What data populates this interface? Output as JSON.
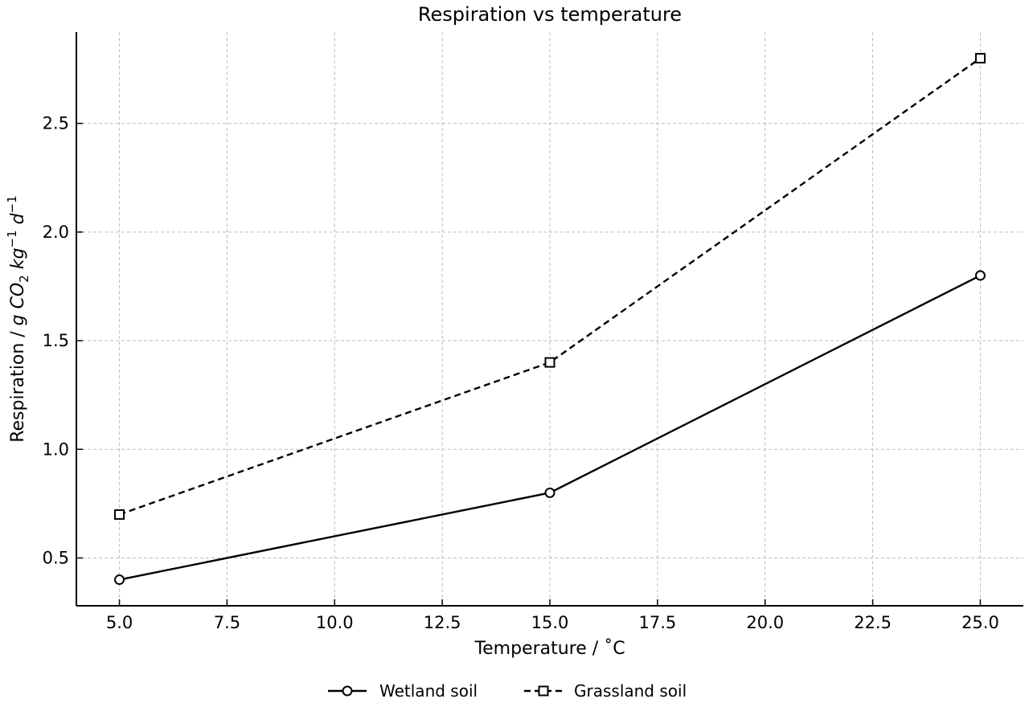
{
  "chart_data": {
    "type": "line",
    "title": "Respiration vs temperature",
    "xlabel": "Temperature / ˚C",
    "ylabel": "Respiration / g CO2 kg-1 d-1",
    "ylabel_parts": {
      "base": "Respiration / ",
      "g": "g ",
      "co": "CO",
      "co_sub": "2",
      "kg": " kg",
      "kg_sup": "−1",
      "d": " d",
      "d_sup": "−1"
    },
    "xlim": [
      4.0,
      26.0
    ],
    "ylim": [
      0.28,
      2.92
    ],
    "xticks": [
      5.0,
      7.5,
      10.0,
      12.5,
      15.0,
      17.5,
      20.0,
      22.5,
      25.0
    ],
    "xtick_labels": [
      "5.0",
      "7.5",
      "10.0",
      "12.5",
      "15.0",
      "17.5",
      "20.0",
      "22.5",
      "25.0"
    ],
    "yticks": [
      0.5,
      1.0,
      1.5,
      2.0,
      2.5
    ],
    "ytick_labels": [
      "0.5",
      "1.0",
      "1.5",
      "2.0",
      "2.5"
    ],
    "grid": true,
    "legend_position": "bottom-center",
    "series": [
      {
        "name": "Wetland soil",
        "x": [
          5,
          15,
          25
        ],
        "y": [
          0.4,
          0.8,
          1.8
        ],
        "line_style": "solid",
        "marker": "circle",
        "color": "#000000"
      },
      {
        "name": "Grassland soil",
        "x": [
          5,
          15,
          25
        ],
        "y": [
          0.7,
          1.4,
          2.8
        ],
        "line_style": "dashed",
        "marker": "square",
        "color": "#000000"
      }
    ]
  }
}
